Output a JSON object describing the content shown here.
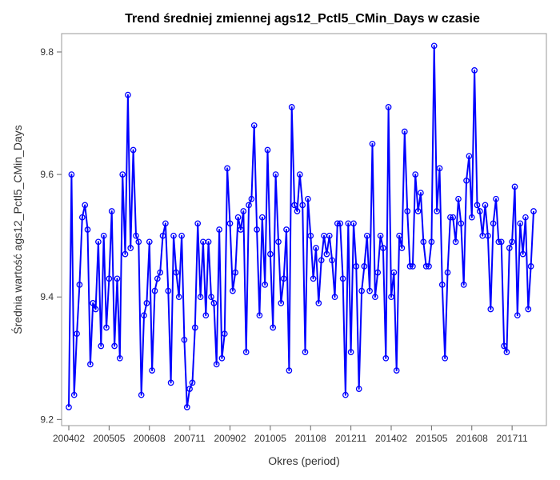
{
  "chart_data": {
    "type": "line",
    "title": "Trend średniej zmiennej ags12_Pctl5_CMin_Days w czasie",
    "xlabel": "Okres (period)",
    "ylabel": "Średnia wartość ags12_Pctl5_CMin_Days",
    "x_tick_labels": [
      "200402",
      "200505",
      "200608",
      "200711",
      "200902",
      "201005",
      "201108",
      "201211",
      "201402",
      "201505",
      "201608",
      "201711"
    ],
    "y_ticks": [
      9.2,
      9.4,
      9.6,
      9.8
    ],
    "ylim": [
      9.19,
      9.83
    ],
    "grid": false,
    "legend": "none",
    "series": [
      {
        "color": "#0000ff",
        "marker": "circle",
        "values": [
          9.22,
          9.6,
          9.24,
          9.34,
          9.42,
          9.53,
          9.55,
          9.51,
          9.29,
          9.39,
          9.38,
          9.49,
          9.32,
          9.5,
          9.35,
          9.43,
          9.54,
          9.32,
          9.43,
          9.3,
          9.6,
          9.47,
          9.73,
          9.48,
          9.64,
          9.5,
          9.49,
          9.24,
          9.37,
          9.39,
          9.49,
          9.28,
          9.41,
          9.43,
          9.44,
          9.5,
          9.52,
          9.41,
          9.26,
          9.5,
          9.44,
          9.4,
          9.5,
          9.33,
          9.22,
          9.25,
          9.26,
          9.35,
          9.52,
          9.4,
          9.49,
          9.37,
          9.49,
          9.4,
          9.39,
          9.29,
          9.51,
          9.3,
          9.34,
          9.61,
          9.52,
          9.41,
          9.44,
          9.53,
          9.51,
          9.54,
          9.31,
          9.55,
          9.56,
          9.68,
          9.51,
          9.37,
          9.53,
          9.42,
          9.64,
          9.47,
          9.35,
          9.6,
          9.49,
          9.39,
          9.43,
          9.51,
          9.28,
          9.71,
          9.55,
          9.54,
          9.6,
          9.55,
          9.31,
          9.56,
          9.5,
          9.43,
          9.48,
          9.39,
          9.46,
          9.5,
          9.47,
          9.5,
          9.46,
          9.4,
          9.52,
          9.52,
          9.43,
          9.24,
          9.52,
          9.31,
          9.52,
          9.45,
          9.25,
          9.41,
          9.45,
          9.5,
          9.41,
          9.65,
          9.4,
          9.44,
          9.5,
          9.48,
          9.3,
          9.71,
          9.4,
          9.44,
          9.28,
          9.5,
          9.48,
          9.67,
          9.54,
          9.45,
          9.45,
          9.6,
          9.54,
          9.57,
          9.49,
          9.45,
          9.45,
          9.49,
          9.81,
          9.54,
          9.61,
          9.42,
          9.3,
          9.44,
          9.53,
          9.53,
          9.49,
          9.56,
          9.52,
          9.42,
          9.59,
          9.63,
          9.53,
          9.77,
          9.55,
          9.54,
          9.5,
          9.55,
          9.5,
          9.38,
          9.52,
          9.56,
          9.49,
          9.49,
          9.32,
          9.31,
          9.48,
          9.49,
          9.58,
          9.37,
          9.52,
          9.47,
          9.53,
          9.38,
          9.45,
          9.54
        ]
      }
    ]
  }
}
